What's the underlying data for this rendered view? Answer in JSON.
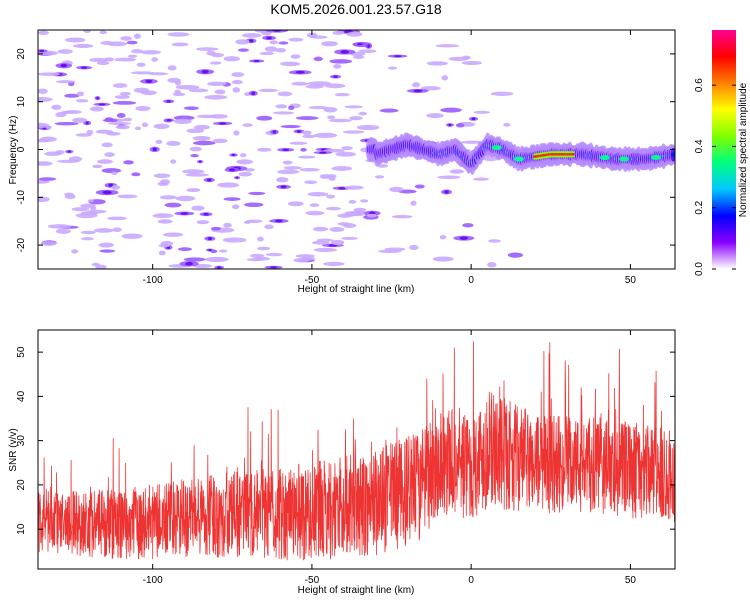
{
  "title": "KOM5.2026.001.23.57.G18",
  "chart_data": [
    {
      "type": "heatmap",
      "xlabel": "Height of straight line (km)",
      "ylabel": "Frequency (Hz)",
      "xlim": [
        -136,
        64
      ],
      "ylim": [
        -25,
        25
      ],
      "xticks": [
        -100,
        -50,
        0,
        50
      ],
      "yticks": [
        -20,
        -10,
        0,
        10,
        20
      ],
      "ridge": {
        "description_points": [
          {
            "x": -30,
            "y": -1
          },
          {
            "x": -20,
            "y": 1
          },
          {
            "x": -10,
            "y": -1
          },
          {
            "x": -5,
            "y": 0
          },
          {
            "x": 0,
            "y": -3
          },
          {
            "x": 5,
            "y": 1
          },
          {
            "x": 10,
            "y": 0
          },
          {
            "x": 15,
            "y": -2
          },
          {
            "x": 25,
            "y": -1
          },
          {
            "x": 35,
            "y": -1
          },
          {
            "x": 45,
            "y": -2
          },
          {
            "x": 55,
            "y": -2
          },
          {
            "x": 64,
            "y": -1
          }
        ],
        "peak_x_range": [
          20,
          32
        ],
        "peak_amplitude": 0.75
      },
      "colorbar": {
        "label": "Normalized spectral amplitude",
        "range": [
          0.0,
          0.78
        ],
        "ticks": [
          0.0,
          0.2,
          0.4,
          0.6
        ],
        "tick_labels": [
          "0.0",
          "0.2",
          "0.4",
          "0.6"
        ],
        "colors": [
          "#ffffff",
          "#8a00ff",
          "#0000ff",
          "#00c8ff",
          "#00ff80",
          "#80ff00",
          "#ffff00",
          "#ff8000",
          "#ff0000",
          "#ff0090"
        ]
      }
    },
    {
      "type": "line",
      "xlabel": "Height of straight line (km)",
      "ylabel": "SNR (v/v)",
      "xlim": [
        -136,
        64
      ],
      "ylim": [
        1,
        55
      ],
      "xticks": [
        -100,
        -50,
        0,
        50
      ],
      "yticks": [
        10,
        20,
        30,
        40,
        50
      ],
      "color": "#ee3333",
      "envelope": [
        {
          "x": -136,
          "mean": 12,
          "amp": 9
        },
        {
          "x": -110,
          "mean": 11,
          "amp": 10
        },
        {
          "x": -80,
          "mean": 13,
          "amp": 12
        },
        {
          "x": -50,
          "mean": 14,
          "amp": 14
        },
        {
          "x": -30,
          "mean": 16,
          "amp": 15
        },
        {
          "x": -15,
          "mean": 20,
          "amp": 16
        },
        {
          "x": -10,
          "mean": 26,
          "amp": 16
        },
        {
          "x": 0,
          "mean": 24,
          "amp": 15
        },
        {
          "x": 5,
          "mean": 28,
          "amp": 17
        },
        {
          "x": 20,
          "mean": 25,
          "amp": 14
        },
        {
          "x": 40,
          "mean": 24,
          "amp": 14
        },
        {
          "x": 64,
          "mean": 22,
          "amp": 13
        }
      ]
    }
  ]
}
